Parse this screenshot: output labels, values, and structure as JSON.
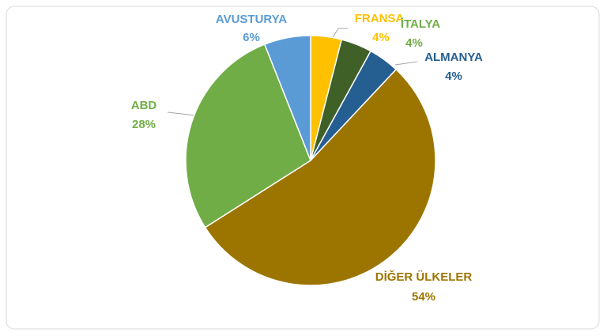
{
  "chart_data": {
    "type": "pie",
    "categories": [
      "FRANSA",
      "İTALYA",
      "ALMANYA",
      "DİĞER ÜLKELER",
      "ABD",
      "AVUSTURYA"
    ],
    "values": [
      4,
      4,
      4,
      54,
      28,
      6
    ],
    "value_labels": [
      "4%",
      "4%",
      "4%",
      "54%",
      "28%",
      "6%"
    ],
    "colors": [
      "#ffc000",
      "#3f6128",
      "#255e91",
      "#9c7500",
      "#70ad47",
      "#5b9bd5"
    ],
    "label_colors": [
      "#ffc000",
      "#70ad47",
      "#255e91",
      "#9c7500",
      "#70ad47",
      "#5b9bd5"
    ]
  }
}
